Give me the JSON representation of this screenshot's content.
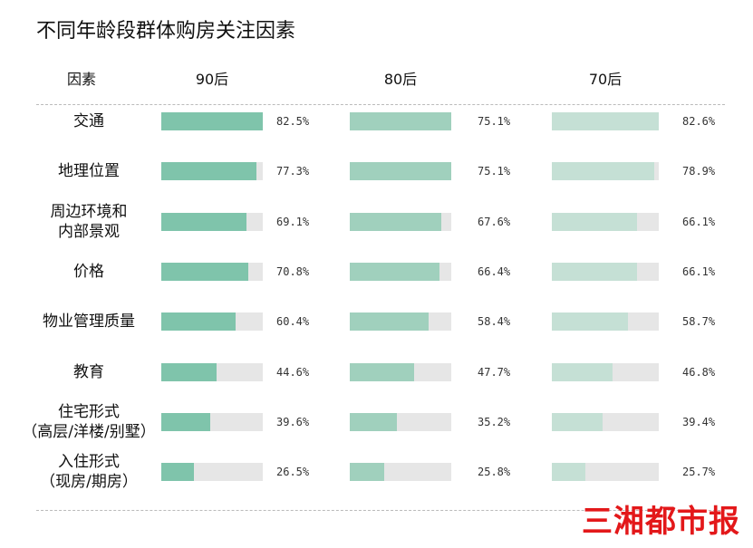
{
  "chart_data": {
    "type": "bar",
    "title": "不同年龄段群体购房关注因素",
    "category_header": "因素",
    "categories": [
      "交通",
      "地理位置",
      "周边环境和\n内部景观",
      "价格",
      "物业管理质量",
      "教育",
      "住宅形式\n（高层/洋楼/别墅）",
      "入住形式\n（现房/期房）"
    ],
    "series": [
      {
        "name": "90后",
        "color": "#7fc4ab",
        "xlim": [
          0,
          82.5
        ],
        "values": [
          82.5,
          77.3,
          69.1,
          70.8,
          60.4,
          44.6,
          39.6,
          26.5
        ],
        "value_labels": [
          "82.5%",
          "77.3%",
          "69.1%",
          "70.8%",
          "60.4%",
          "44.6%",
          "39.6%",
          "26.5%"
        ]
      },
      {
        "name": "80后",
        "color": "#a0d0bd",
        "xlim": [
          0,
          75.1
        ],
        "values": [
          75.1,
          75.1,
          67.6,
          66.4,
          58.4,
          47.7,
          35.2,
          25.8
        ],
        "value_labels": [
          "75.1%",
          "75.1%",
          "67.6%",
          "66.4%",
          "58.4%",
          "47.7%",
          "35.2%",
          "25.8%"
        ]
      },
      {
        "name": "70后",
        "color": "#c5e0d5",
        "xlim": [
          0,
          82.6
        ],
        "values": [
          82.6,
          78.9,
          66.1,
          66.1,
          58.7,
          46.8,
          39.4,
          25.7
        ],
        "value_labels": [
          "82.6%",
          "78.9%",
          "66.1%",
          "66.1%",
          "58.7%",
          "46.8%",
          "39.4%",
          "25.7%"
        ]
      }
    ],
    "track_color": "#e6e6e6",
    "watermark": "三湘都市报"
  }
}
